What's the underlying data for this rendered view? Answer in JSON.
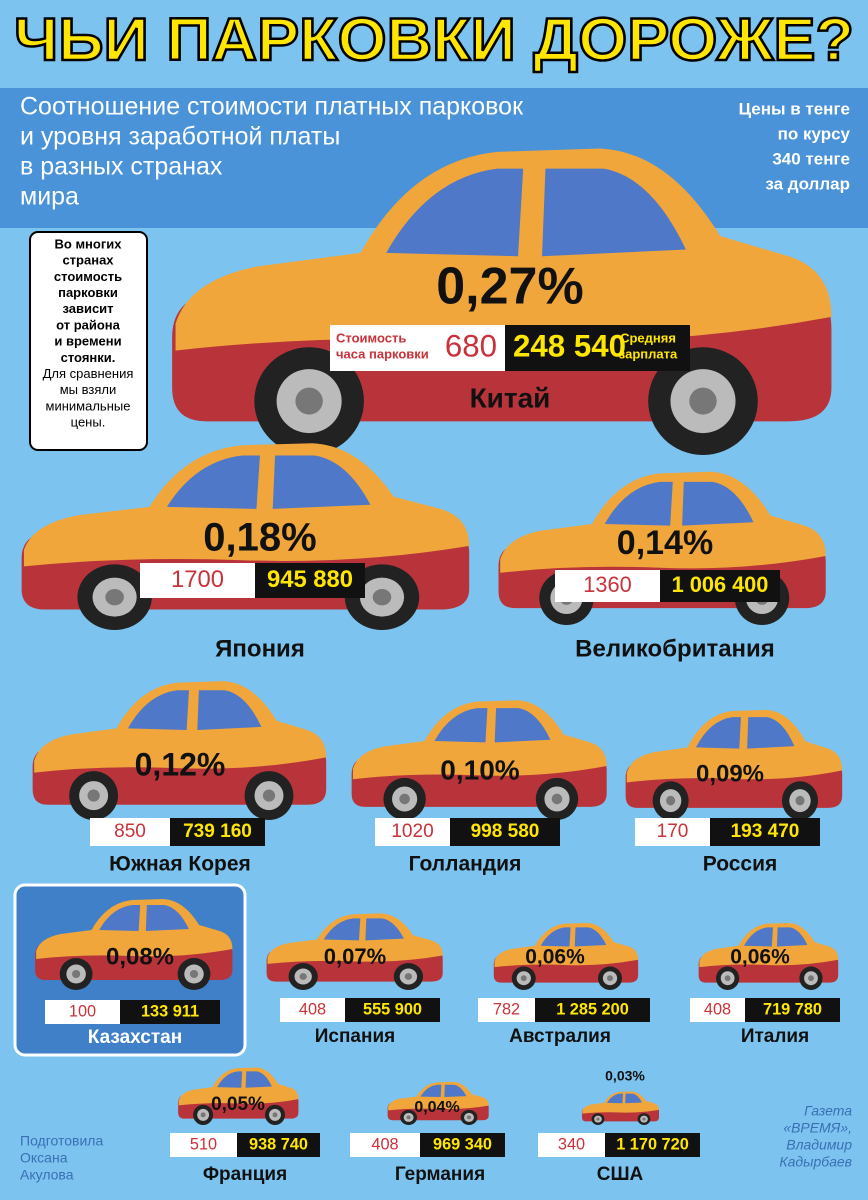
{
  "header": {
    "title": "ЧЬИ ПАРКОВКИ ДОРОЖЕ?",
    "subtitle": [
      "Соотношение стоимости платных парковок",
      "и уровня заработной платы",
      "в разных странах",
      "мира"
    ],
    "note": [
      "Цены в тенге",
      "по курсу",
      "340 тенге",
      "за доллар"
    ]
  },
  "sidebox": {
    "bold": [
      "Во многих",
      "странах",
      "стоимость",
      "парковки",
      "зависит",
      "от района",
      "и времени",
      "стоянки."
    ],
    "normal": [
      "Для сравнения",
      "мы взяли",
      "минимальные",
      "цены."
    ]
  },
  "legend": {
    "parking": [
      "Стоимость",
      "часа парковки"
    ],
    "salary": [
      "Средняя",
      "зарплата"
    ]
  },
  "countries": [
    {
      "name": "Китай",
      "percent": "0,27%",
      "parking": "680",
      "salary": "248 540"
    },
    {
      "name": "Япония",
      "percent": "0,18%",
      "parking": "1700",
      "salary": "945 880"
    },
    {
      "name": "Великобритания",
      "percent": "0,14%",
      "parking": "1360",
      "salary": "1 006 400"
    },
    {
      "name": "Южная Корея",
      "percent": "0,12%",
      "parking": "850",
      "salary": "739 160"
    },
    {
      "name": "Голландия",
      "percent": "0,10%",
      "parking": "1020",
      "salary": "998 580"
    },
    {
      "name": "Россия",
      "percent": "0,09%",
      "parking": "170",
      "salary": "193 470"
    },
    {
      "name": "Казахстан",
      "percent": "0,08%",
      "parking": "100",
      "salary": "133 911"
    },
    {
      "name": "Испания",
      "percent": "0,07%",
      "parking": "408",
      "salary": "555 900"
    },
    {
      "name": "Австралия",
      "percent": "0,06%",
      "parking": "782",
      "salary": "1 285 200"
    },
    {
      "name": "Италия",
      "percent": "0,06%",
      "parking": "408",
      "salary": "719 780"
    },
    {
      "name": "Франция",
      "percent": "0,05%",
      "parking": "510",
      "salary": "938 740"
    },
    {
      "name": "Германия",
      "percent": "0,04%",
      "parking": "408",
      "salary": "969 340"
    },
    {
      "name": "США",
      "percent": "0,03%",
      "parking": "340",
      "salary": "1 170 720"
    }
  ],
  "credits": {
    "left": [
      "Подготовила",
      "Оксана",
      "Акулова"
    ],
    "right": [
      "Газета",
      "«ВРЕМЯ»,",
      "Владимир",
      "Кадырбаев"
    ]
  }
}
